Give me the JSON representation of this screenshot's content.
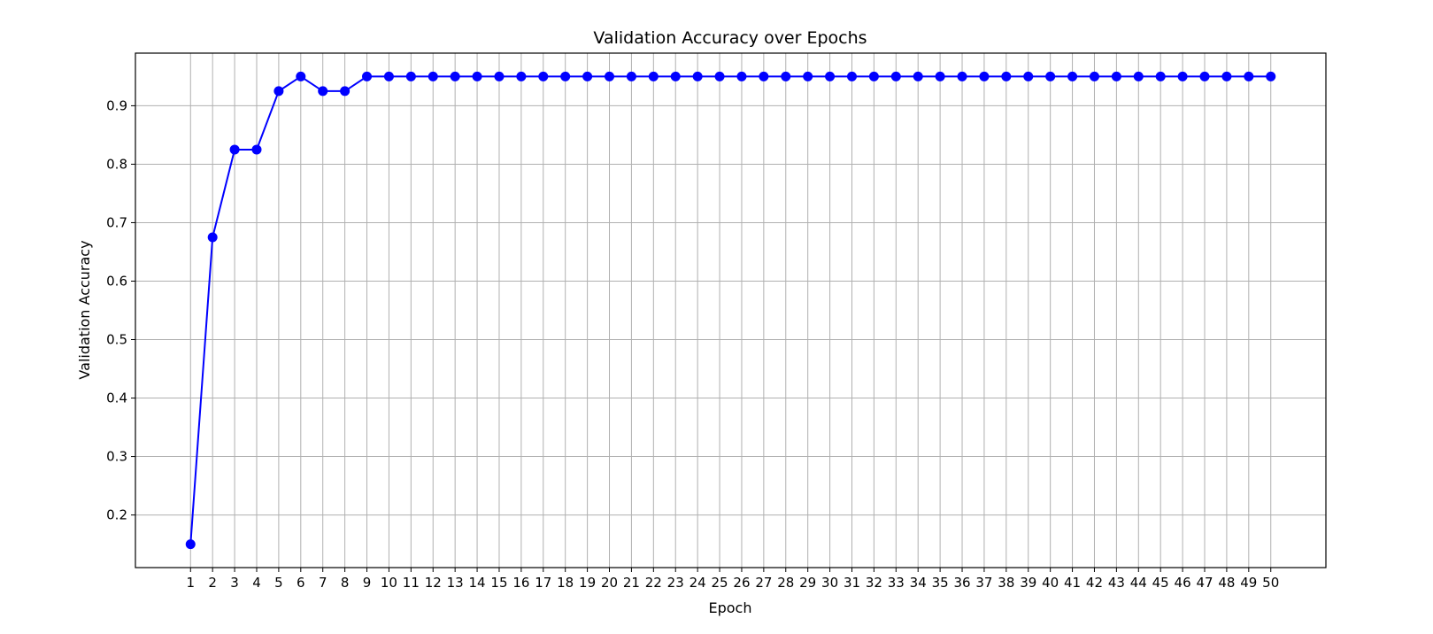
{
  "chart_data": {
    "type": "line",
    "title": "Validation Accuracy over Epochs",
    "xlabel": "Epoch",
    "ylabel": "Validation Accuracy",
    "x": [
      1,
      2,
      3,
      4,
      5,
      6,
      7,
      8,
      9,
      10,
      11,
      12,
      13,
      14,
      15,
      16,
      17,
      18,
      19,
      20,
      21,
      22,
      23,
      24,
      25,
      26,
      27,
      28,
      29,
      30,
      31,
      32,
      33,
      34,
      35,
      36,
      37,
      38,
      39,
      40,
      41,
      42,
      43,
      44,
      45,
      46,
      47,
      48,
      49,
      50
    ],
    "series": [
      {
        "values": [
          0.15,
          0.675,
          0.825,
          0.825,
          0.925,
          0.95,
          0.925,
          0.925,
          0.95,
          0.95,
          0.95,
          0.95,
          0.95,
          0.95,
          0.95,
          0.95,
          0.95,
          0.95,
          0.95,
          0.95,
          0.95,
          0.95,
          0.95,
          0.95,
          0.95,
          0.95,
          0.95,
          0.95,
          0.95,
          0.95,
          0.95,
          0.95,
          0.95,
          0.95,
          0.95,
          0.95,
          0.95,
          0.95,
          0.95,
          0.95,
          0.95,
          0.95,
          0.95,
          0.95,
          0.95,
          0.95,
          0.95,
          0.95,
          0.95,
          0.95
        ],
        "color": "#0000ff",
        "marker": "circle"
      }
    ],
    "xlim": [
      -1.5,
      52.5
    ],
    "ylim": [
      0.11,
      0.99
    ],
    "yticks": [
      0.2,
      0.3,
      0.4,
      0.5,
      0.6,
      0.7,
      0.8,
      0.9
    ],
    "grid": true
  }
}
